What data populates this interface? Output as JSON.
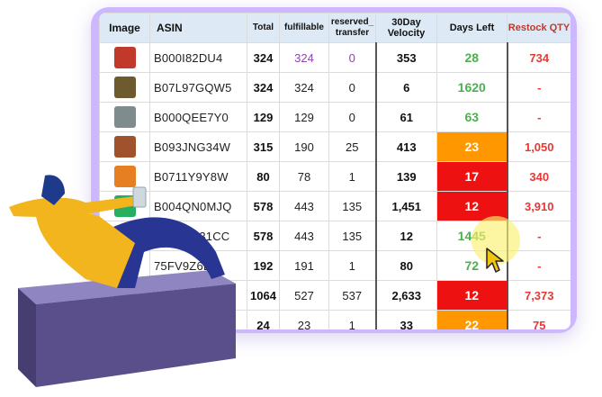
{
  "headers": {
    "image": "Image",
    "asin": "ASIN",
    "total": "Total",
    "fulfillable": "fulfillable",
    "reserved_1": "reserved_",
    "reserved_2": "transfer",
    "velocity_1": "30Day",
    "velocity_2": "Velocity",
    "days_left": "Days Left",
    "restock": "Restock QTY"
  },
  "rows": [
    {
      "asin": "B000I82DU4",
      "total": "324",
      "fulfillable": "324",
      "reserved": "0",
      "velocity": "353",
      "days_left": "28",
      "restock": "734",
      "days_bg": "#ffffff",
      "days_color": "#4caf50",
      "thumb": "#c0392b",
      "purple": true
    },
    {
      "asin": "B07L97GQW5",
      "total": "324",
      "fulfillable": "324",
      "reserved": "0",
      "velocity": "6",
      "days_left": "1620",
      "restock": "-",
      "days_bg": "#ffffff",
      "days_color": "#4caf50",
      "thumb": "#6d5a2e",
      "purple": false
    },
    {
      "asin": "B000QEE7Y0",
      "total": "129",
      "fulfillable": "129",
      "reserved": "0",
      "velocity": "61",
      "days_left": "63",
      "restock": "-",
      "days_bg": "#ffffff",
      "days_color": "#4caf50",
      "thumb": "#7f8c8d",
      "purple": false
    },
    {
      "asin": "B093JNG34W",
      "total": "315",
      "fulfillable": "190",
      "reserved": "25",
      "velocity": "413",
      "days_left": "23",
      "restock": "1,050",
      "days_bg": "#ff9800",
      "days_color": "#ffffff",
      "thumb": "#a0522d",
      "purple": false
    },
    {
      "asin": "B0711Y9Y8W",
      "total": "80",
      "fulfillable": "78",
      "reserved": "1",
      "velocity": "139",
      "days_left": "17",
      "restock": "340",
      "days_bg": "#ee1111",
      "days_color": "#ffffff",
      "thumb": "#e67e22",
      "purple": false
    },
    {
      "asin": "B004QN0MJQ",
      "total": "578",
      "fulfillable": "443",
      "reserved": "135",
      "velocity": "1,451",
      "days_left": "12",
      "restock": "3,910",
      "days_bg": "#ee1111",
      "days_color": "#ffffff",
      "thumb": "#27ae60",
      "purple": false
    },
    {
      "asin": "B07NHL31CC",
      "total": "578",
      "fulfillable": "443",
      "reserved": "135",
      "velocity": "12",
      "days_left": "1445",
      "restock": "-",
      "days_bg": "#ffffff",
      "days_color": "#4caf50",
      "thumb": "#bdc3c7",
      "purple": false
    },
    {
      "asin": "75FV9Z6B",
      "total": "192",
      "fulfillable": "191",
      "reserved": "1",
      "velocity": "80",
      "days_left": "72",
      "restock": "-",
      "days_bg": "#ffffff",
      "days_color": "#4caf50",
      "thumb": "#95a5a6",
      "purple": false
    },
    {
      "asin": "",
      "total": "1064",
      "fulfillable": "527",
      "reserved": "537",
      "velocity": "2,633",
      "days_left": "12",
      "restock": "7,373",
      "days_bg": "#ee1111",
      "days_color": "#ffffff",
      "thumb": "#7f8c8d",
      "purple": false
    },
    {
      "asin": "",
      "total": "24",
      "fulfillable": "23",
      "reserved": "1",
      "velocity": "33",
      "days_left": "22",
      "restock": "75",
      "days_bg": "#ff9800",
      "days_color": "#ffffff",
      "thumb": "#7f8c8d",
      "purple": false
    }
  ]
}
